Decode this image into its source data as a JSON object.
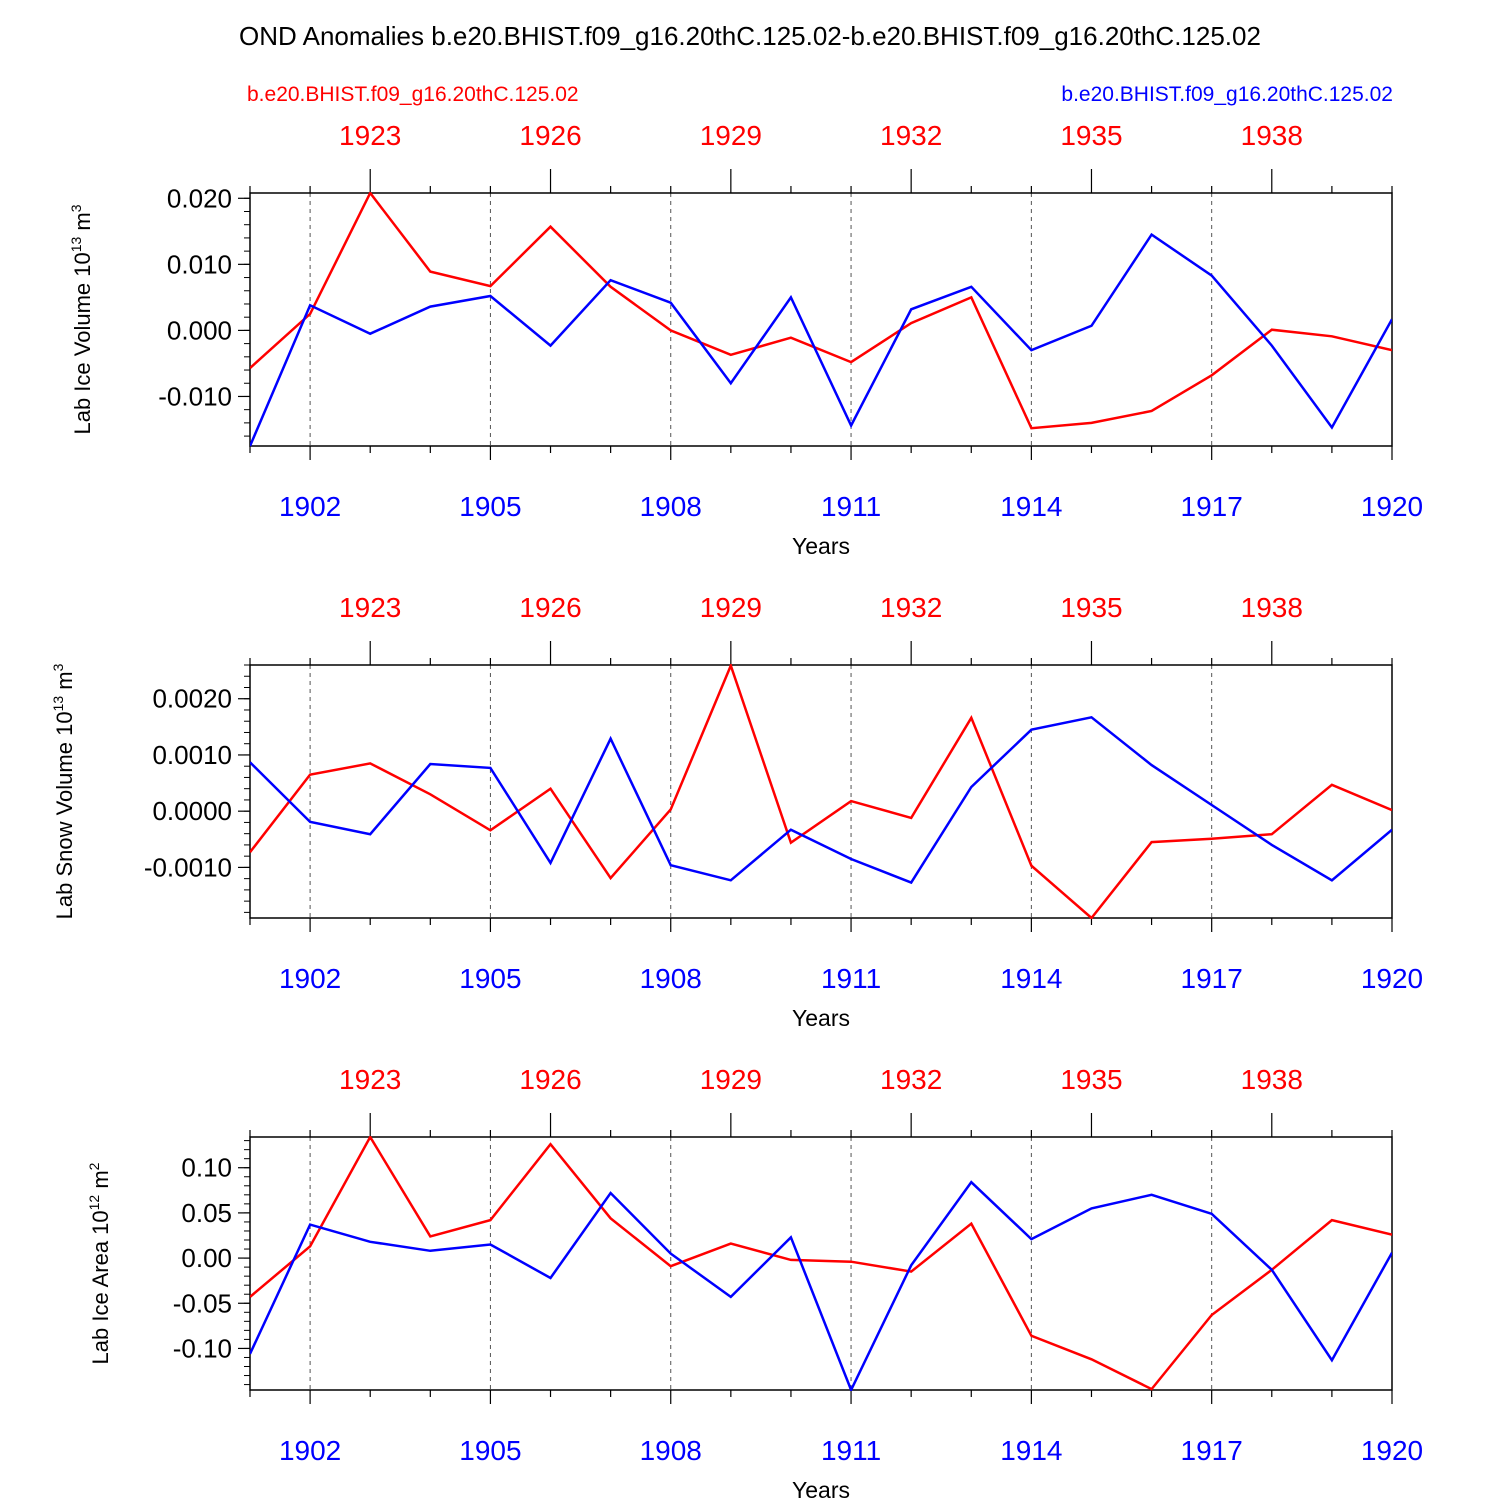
{
  "title": "OND Anomalies b.e20.BHIST.f09_g16.20thC.125.02-b.e20.BHIST.f09_g16.20thC.125.02",
  "legend": {
    "case1": "b.e20.BHIST.f09_g16.20thC.125.02",
    "case2": "b.e20.BHIST.f09_g16.20thC.125.02"
  },
  "colors": {
    "case1": "#ff0000",
    "case2": "#0000ff",
    "axis": "#000000",
    "grid": "#555555"
  },
  "chart_data": [
    {
      "type": "line",
      "ylabel": "Lab Ice Volume",
      "units_base": "10",
      "units_exp": "13",
      "units_unit": "m",
      "units_unit_exp": "3",
      "xlabel": "Years",
      "xlim": [
        1901,
        1920
      ],
      "ylim": [
        -0.0175,
        0.0208
      ],
      "yticks": [
        -0.01,
        0.0,
        0.01,
        0.02
      ],
      "ytick_labels": [
        "-0.010",
        "0.000",
        "0.010",
        "0.020"
      ],
      "yminor_step": 0.002,
      "bottom_ticks": [
        1902,
        1905,
        1908,
        1911,
        1914,
        1917,
        1920
      ],
      "bottom_tick_labels": [
        "1902",
        "1905",
        "1908",
        "1911",
        "1914",
        "1917",
        "1920"
      ],
      "top_ticks": [
        1903,
        1906,
        1909,
        1912,
        1915,
        1918
      ],
      "top_tick_labels": [
        "1923",
        "1926",
        "1929",
        "1932",
        "1935",
        "1938"
      ],
      "x": [
        1901,
        1902,
        1903,
        1904,
        1905,
        1906,
        1907,
        1908,
        1909,
        1910,
        1911,
        1912,
        1913,
        1914,
        1915,
        1916,
        1917,
        1918,
        1919,
        1920
      ],
      "series": [
        {
          "name": "b.e20.BHIST.f09_g16.20thC.125.02 (red, 1921-1940)",
          "color_key": "case1",
          "values": [
            -0.0057,
            0.0025,
            0.0208,
            0.0089,
            0.0067,
            0.0157,
            0.0066,
            0.0,
            -0.0037,
            -0.0011,
            -0.0048,
            0.0011,
            0.005,
            -0.0148,
            -0.014,
            -0.0122,
            -0.0068,
            0.0001,
            -0.0009,
            -0.003
          ]
        },
        {
          "name": "b.e20.BHIST.f09_g16.20thC.125.02 (blue, 1901-1920)",
          "color_key": "case2",
          "values": [
            -0.0175,
            0.0038,
            -0.0005,
            0.0036,
            0.0052,
            -0.0023,
            0.0076,
            0.0042,
            -0.008,
            0.005,
            -0.0144,
            0.0032,
            0.0066,
            -0.003,
            0.0007,
            0.0145,
            0.0083,
            -0.0023,
            -0.0147,
            0.0017
          ]
        }
      ]
    },
    {
      "type": "line",
      "ylabel": "Lab Snow Volume",
      "units_base": "10",
      "units_exp": "13",
      "units_unit": "m",
      "units_unit_exp": "3",
      "xlabel": "Years",
      "xlim": [
        1901,
        1920
      ],
      "ylim": [
        -0.0019,
        0.0026
      ],
      "yticks": [
        -0.001,
        0.0,
        0.001,
        0.002
      ],
      "ytick_labels": [
        "-0.0010",
        "0.0000",
        "0.0010",
        "0.0020"
      ],
      "yminor_step": 0.0002,
      "bottom_ticks": [
        1902,
        1905,
        1908,
        1911,
        1914,
        1917,
        1920
      ],
      "bottom_tick_labels": [
        "1902",
        "1905",
        "1908",
        "1911",
        "1914",
        "1917",
        "1920"
      ],
      "top_ticks": [
        1903,
        1906,
        1909,
        1912,
        1915,
        1918
      ],
      "top_tick_labels": [
        "1923",
        "1926",
        "1929",
        "1932",
        "1935",
        "1938"
      ],
      "x": [
        1901,
        1902,
        1903,
        1904,
        1905,
        1906,
        1907,
        1908,
        1909,
        1910,
        1911,
        1912,
        1913,
        1914,
        1915,
        1916,
        1917,
        1918,
        1919,
        1920
      ],
      "series": [
        {
          "name": "b.e20.BHIST.f09_g16.20thC.125.02 (red, 1921-1940)",
          "color_key": "case1",
          "values": [
            -0.00073,
            0.00065,
            0.00085,
            0.0003,
            -0.00034,
            0.0004,
            -0.00119,
            3e-05,
            0.00259,
            -0.00056,
            0.00018,
            -0.00012,
            0.00166,
            -0.00097,
            -0.0019,
            -0.00055,
            -0.00049,
            -0.00041,
            0.00047,
            2e-05
          ]
        },
        {
          "name": "b.e20.BHIST.f09_g16.20thC.125.02 (blue, 1901-1920)",
          "color_key": "case2",
          "values": [
            0.00087,
            -0.00019,
            -0.00041,
            0.00084,
            0.00077,
            -0.00092,
            0.00129,
            -0.00096,
            -0.00123,
            -0.00033,
            -0.00085,
            -0.00127,
            0.00043,
            0.00145,
            0.00167,
            0.00082,
            0.00011,
            -0.0006,
            -0.00123,
            -0.00033
          ]
        }
      ]
    },
    {
      "type": "line",
      "ylabel": "Lab Ice Area",
      "units_base": "10",
      "units_exp": "12",
      "units_unit": "m",
      "units_unit_exp": "2",
      "xlabel": "Years",
      "xlim": [
        1901,
        1920
      ],
      "ylim": [
        -0.146,
        0.134
      ],
      "yticks": [
        -0.1,
        -0.05,
        0.0,
        0.05,
        0.1
      ],
      "ytick_labels": [
        "-0.10",
        "-0.05",
        "0.00",
        "0.05",
        "0.10"
      ],
      "yminor_step": 0.01,
      "bottom_ticks": [
        1902,
        1905,
        1908,
        1911,
        1914,
        1917,
        1920
      ],
      "bottom_tick_labels": [
        "1902",
        "1905",
        "1908",
        "1911",
        "1914",
        "1917",
        "1920"
      ],
      "top_ticks": [
        1903,
        1906,
        1909,
        1912,
        1915,
        1918
      ],
      "top_tick_labels": [
        "1923",
        "1926",
        "1929",
        "1932",
        "1935",
        "1938"
      ],
      "x": [
        1901,
        1902,
        1903,
        1904,
        1905,
        1906,
        1907,
        1908,
        1909,
        1910,
        1911,
        1912,
        1913,
        1914,
        1915,
        1916,
        1917,
        1918,
        1919,
        1920
      ],
      "series": [
        {
          "name": "b.e20.BHIST.f09_g16.20thC.125.02 (red, 1921-1940)",
          "color_key": "case1",
          "values": [
            -0.043,
            0.013,
            0.134,
            0.024,
            0.042,
            0.126,
            0.044,
            -0.009,
            0.016,
            -0.002,
            -0.004,
            -0.015,
            0.038,
            -0.086,
            -0.112,
            -0.145,
            -0.063,
            -0.013,
            0.042,
            0.026
          ]
        },
        {
          "name": "b.e20.BHIST.f09_g16.20thC.125.02 (blue, 1901-1920)",
          "color_key": "case2",
          "values": [
            -0.106,
            0.037,
            0.018,
            0.008,
            0.015,
            -0.022,
            0.072,
            0.005,
            -0.043,
            0.023,
            -0.146,
            -0.008,
            0.084,
            0.021,
            0.055,
            0.07,
            0.049,
            -0.013,
            -0.113,
            0.006
          ]
        }
      ]
    }
  ]
}
